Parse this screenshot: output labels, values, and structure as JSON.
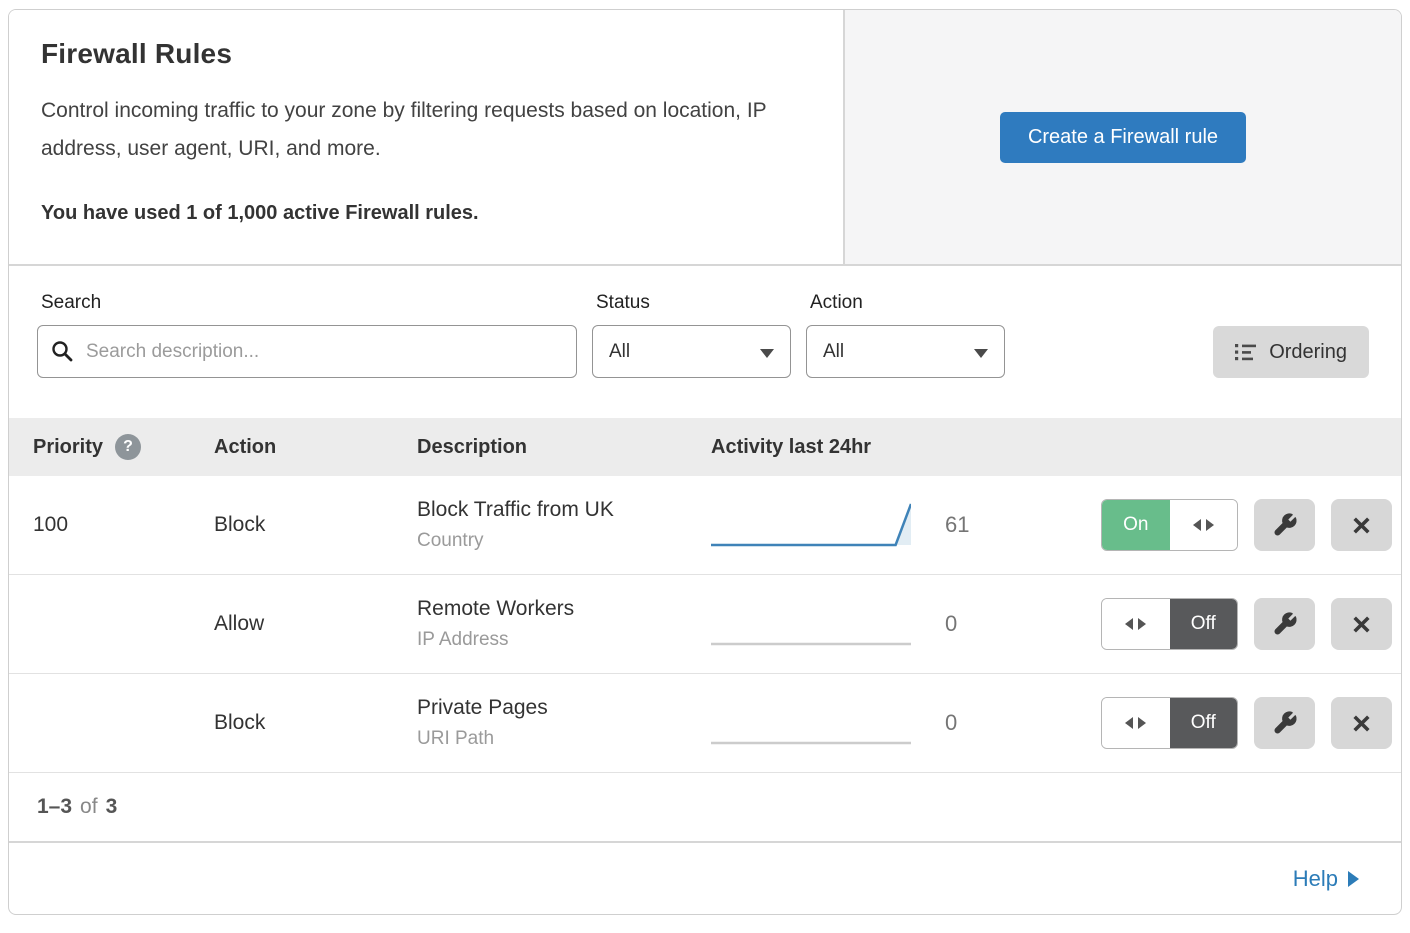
{
  "header": {
    "title": "Firewall Rules",
    "description": "Control incoming traffic to your zone by filtering requests based on location, IP address, user agent, URI, and more.",
    "usage_text": "You have used 1 of 1,000 active Firewall rules.",
    "create_button_label": "Create a Firewall rule"
  },
  "filters": {
    "search_label": "Search",
    "search_placeholder": "Search description...",
    "status_label": "Status",
    "status_value": "All",
    "action_label": "Action",
    "action_value": "All",
    "ordering_label": "Ordering"
  },
  "table": {
    "columns": {
      "priority": "Priority",
      "action": "Action",
      "description": "Description",
      "activity": "Activity last 24hr"
    },
    "toggle": {
      "on_label": "On",
      "off_label": "Off"
    },
    "rows": [
      {
        "priority": "100",
        "action": "Block",
        "description": "Block Traffic from UK",
        "match_type": "Country",
        "activity_count": "61",
        "activity_series": [
          0,
          0,
          0,
          0,
          0,
          0,
          0,
          0,
          0,
          0,
          0,
          0,
          0,
          61
        ],
        "enabled": true
      },
      {
        "priority": "",
        "action": "Allow",
        "description": "Remote Workers",
        "match_type": "IP Address",
        "activity_count": "0",
        "activity_series": [
          0,
          0,
          0,
          0,
          0,
          0,
          0,
          0,
          0,
          0,
          0,
          0,
          0,
          0
        ],
        "enabled": false
      },
      {
        "priority": "",
        "action": "Block",
        "description": "Private Pages",
        "match_type": "URI Path",
        "activity_count": "0",
        "activity_series": [
          0,
          0,
          0,
          0,
          0,
          0,
          0,
          0,
          0,
          0,
          0,
          0,
          0,
          0
        ],
        "enabled": false
      }
    ]
  },
  "footer": {
    "range": "1–3",
    "of_label": "of",
    "total": "3",
    "help_label": "Help"
  },
  "colors": {
    "accent_blue": "#2f7bbf",
    "toggle_green": "#68bd8b",
    "toggle_off_gray": "#58595b",
    "sparkline_line": "#3f83b8",
    "sparkline_fill": "rgba(63,131,184,0.15)",
    "sparkline_flat": "#cccccc"
  }
}
